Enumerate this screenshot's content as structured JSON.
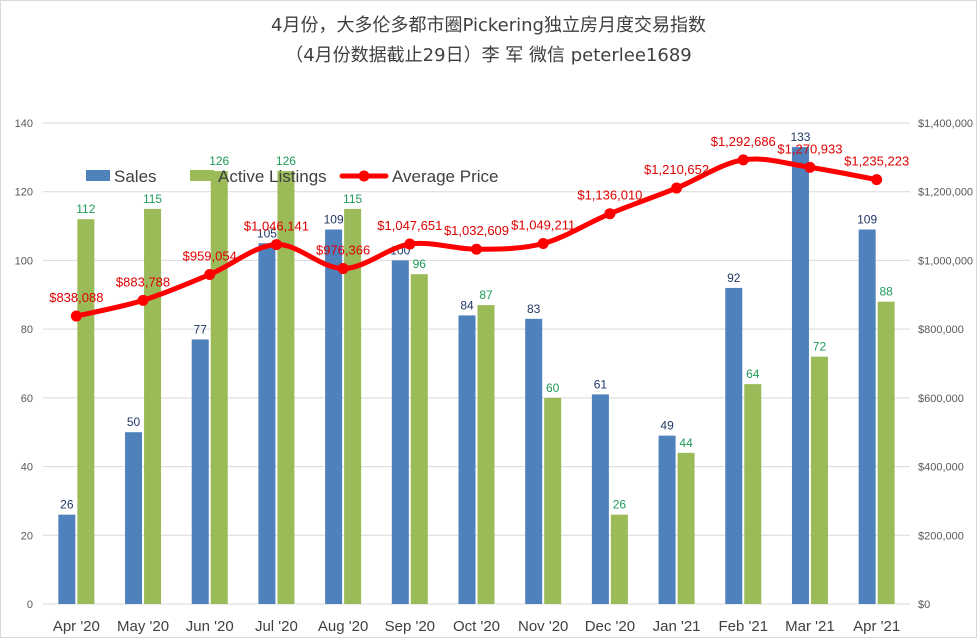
{
  "title": "4月份，大多伦多都市圈Pickering独立房月度交易指数",
  "subtitle": "（4月份数据截止29日）李 军  微信  peterlee1689",
  "colors": {
    "sales": "#4f81bd",
    "listings": "#9bbb59",
    "price": "#ff0000",
    "sales_label": "#203864",
    "listings_label": "#1e9b57",
    "price_label": "#e00000",
    "grid": "#d9d9d9"
  },
  "chart_data": {
    "type": "bar",
    "categories": [
      "Apr '20",
      "May '20",
      "Jun '20",
      "Jul '20",
      "Aug '20",
      "Sep '20",
      "Oct '20",
      "Nov '20",
      "Dec '20",
      "Jan '21",
      "Feb '21",
      "Mar '21",
      "Apr '21"
    ],
    "series": [
      {
        "name": "Sales",
        "kind": "bar",
        "axis": "left",
        "values": [
          26,
          50,
          77,
          105,
          109,
          100,
          84,
          83,
          61,
          49,
          92,
          133,
          109
        ]
      },
      {
        "name": "Active Listings",
        "kind": "bar",
        "axis": "left",
        "values": [
          112,
          115,
          126,
          126,
          115,
          96,
          87,
          60,
          26,
          44,
          64,
          72,
          88
        ]
      },
      {
        "name": "Average Price",
        "kind": "line",
        "axis": "right",
        "values": [
          838088,
          883788,
          959054,
          1046141,
          976366,
          1047651,
          1032609,
          1049211,
          1136010,
          1210652,
          1292686,
          1270933,
          1235223
        ],
        "labels": [
          "$838,088",
          "$883,788",
          "$959,054",
          "$1,046,141",
          "$976,366",
          "$1,047,651",
          "$1,032,609",
          "$1,049,211",
          "$1,136,010",
          "$1,210,652",
          "$1,292,686",
          "$1,270,933",
          "$1,235,223"
        ]
      }
    ],
    "left_axis": {
      "min": 0,
      "max": 140,
      "ticks": [
        "0",
        "20",
        "40",
        "60",
        "80",
        "100",
        "120",
        "140"
      ]
    },
    "right_axis": {
      "min": 0,
      "max": 1400000,
      "ticks": [
        "$0",
        "$200,000",
        "$400,000",
        "$600,000",
        "$800,000",
        "$1,000,000",
        "$1,200,000",
        "$1,400,000"
      ]
    },
    "grid": true,
    "legend": {
      "position": "top-left",
      "items": [
        "Sales",
        "Active Listings",
        "Average Price"
      ]
    }
  }
}
